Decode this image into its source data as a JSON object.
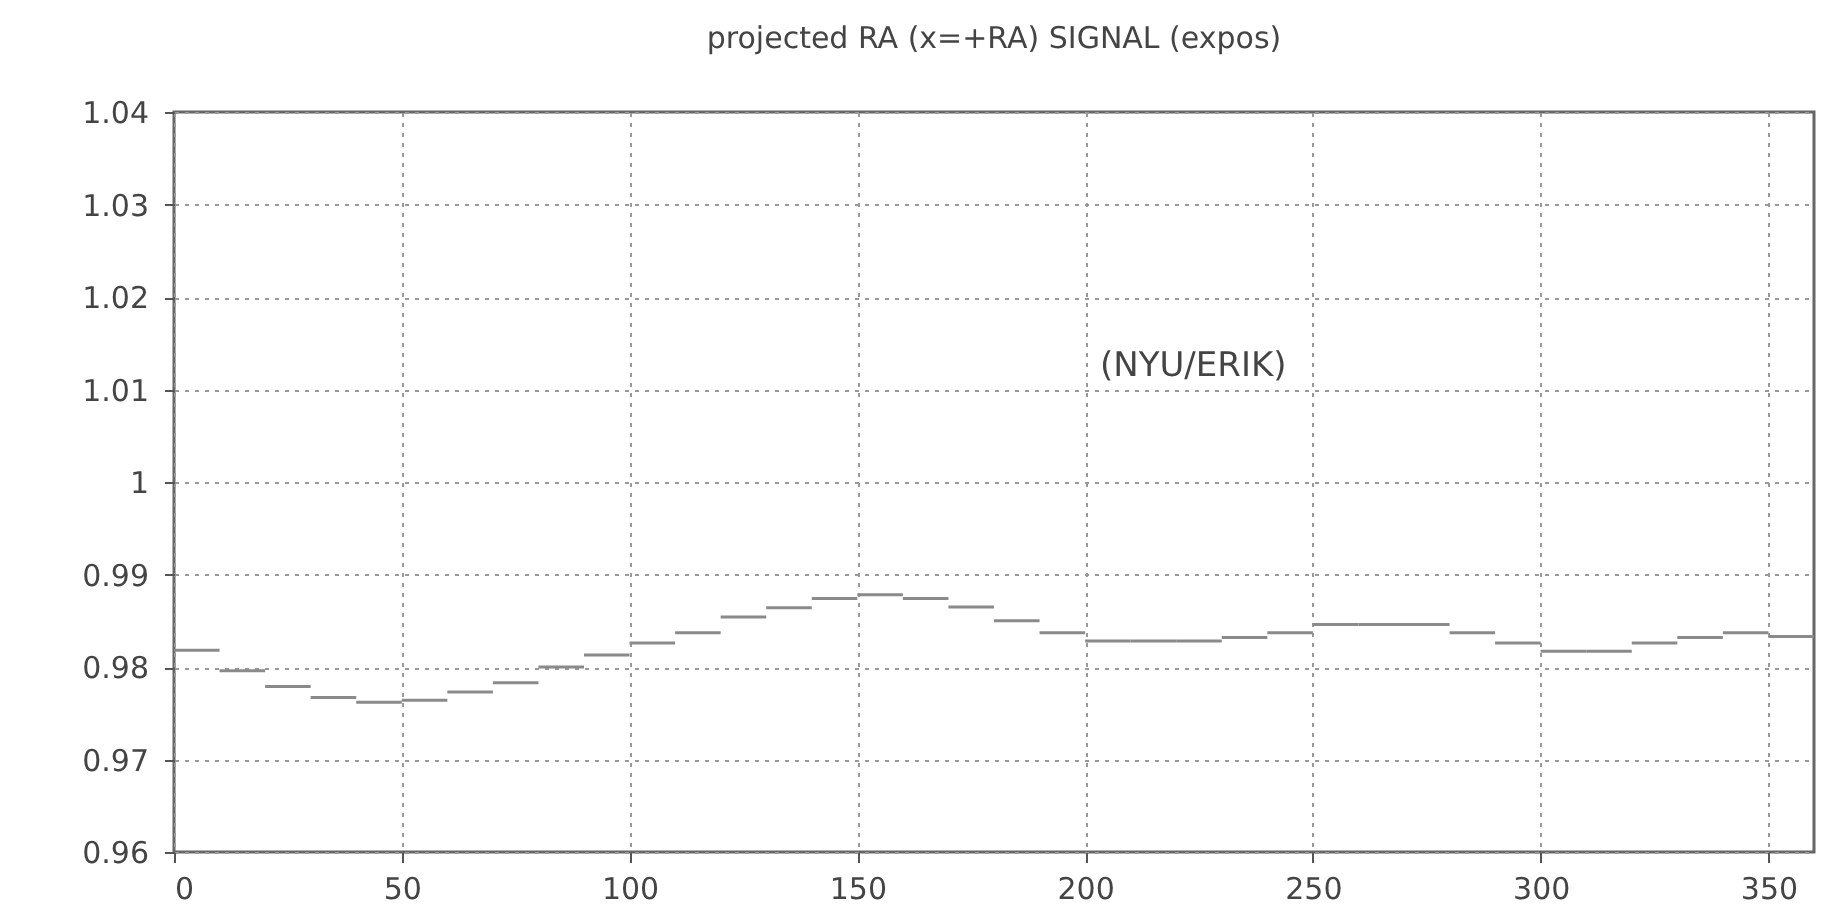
{
  "chart_data": {
    "type": "histogram",
    "title": "projected RA (x=+RA)   SIGNAL (expos)",
    "annotations": [
      "(NYU/ERIK)"
    ],
    "bins": [
      0,
      10,
      20,
      30,
      40,
      50,
      60,
      70,
      80,
      90,
      100,
      110,
      120,
      130,
      140,
      150,
      160,
      170,
      180,
      190,
      200,
      210,
      220,
      230,
      240,
      250,
      260,
      270,
      280,
      290,
      300,
      310,
      320,
      330,
      340,
      350,
      360
    ],
    "values": [
      0.9818,
      0.9796,
      0.9779,
      0.9767,
      0.9762,
      0.9764,
      0.9773,
      0.9783,
      0.98,
      0.9813,
      0.9826,
      0.9837,
      0.9854,
      0.9864,
      0.9874,
      0.9878,
      0.9874,
      0.9865,
      0.985,
      0.9837,
      0.9828,
      0.9828,
      0.9828,
      0.9832,
      0.9837,
      0.9846,
      0.9846,
      0.9846,
      0.9837,
      0.9826,
      0.9817,
      0.9817,
      0.9826,
      0.9832,
      0.9837,
      0.9833
    ],
    "color": "#8a8a8a",
    "xlim": [
      0,
      360
    ],
    "xticks": [
      0,
      50,
      100,
      150,
      200,
      250,
      300,
      350
    ],
    "ylim": [
      0.96,
      1.04
    ],
    "yticks": [
      0.96,
      0.97,
      0.98,
      0.99,
      1,
      1.01,
      1.02,
      1.03,
      1.04
    ],
    "grid": true
  }
}
